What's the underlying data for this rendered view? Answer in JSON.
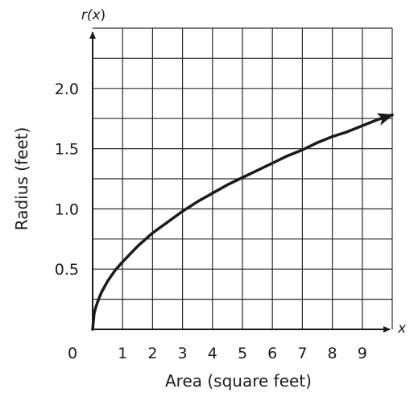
{
  "chart_data": {
    "type": "line",
    "title": "",
    "xlabel": "Area (square feet)",
    "ylabel": "Radius (feet)",
    "x_axis_var": "x",
    "y_axis_label": {
      "prefix": "r(",
      "var": "x",
      "suffix": ")"
    },
    "origin_label": "0",
    "xlim": [
      0,
      10
    ],
    "ylim": [
      0,
      2.5
    ],
    "x_ticks": [
      "1",
      "2",
      "3",
      "4",
      "5",
      "6",
      "7",
      "8",
      "9"
    ],
    "y_ticks": [
      "0.5",
      "1.0",
      "1.5",
      "2.0"
    ],
    "grid": true,
    "function": "r(x) = sqrt(x / pi)",
    "series": [
      {
        "x": [
          0,
          0.05,
          0.1,
          0.2,
          0.3,
          0.5,
          0.75,
          1,
          1.5,
          2,
          2.5,
          3,
          3.5,
          4,
          4.5,
          5,
          5.5,
          6,
          6.5,
          7,
          7.5,
          8,
          8.5,
          9,
          9.5,
          10
        ],
        "values": [
          0,
          0.13,
          0.18,
          0.25,
          0.31,
          0.4,
          0.49,
          0.56,
          0.69,
          0.8,
          0.89,
          0.98,
          1.06,
          1.13,
          1.2,
          1.26,
          1.32,
          1.38,
          1.44,
          1.49,
          1.55,
          1.6,
          1.64,
          1.69,
          1.74,
          1.78
        ],
        "color": "#1a1a1a",
        "end_arrow": true
      }
    ]
  }
}
